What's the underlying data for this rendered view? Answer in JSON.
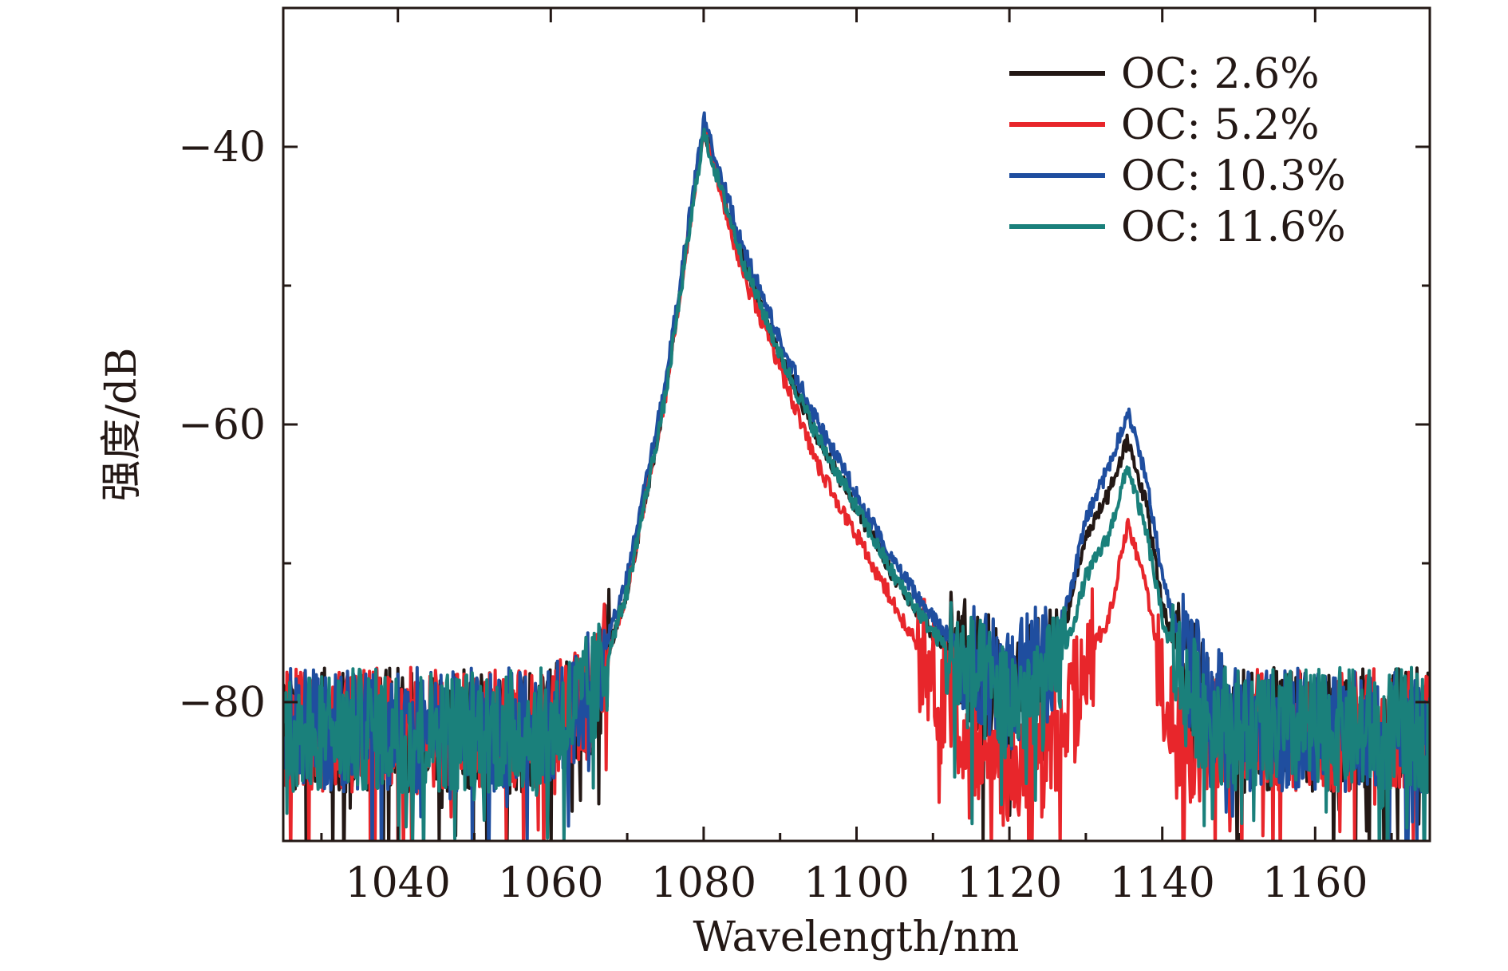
{
  "chart_data": {
    "type": "line",
    "xlabel": "Wavelength/nm",
    "ylabel": "强度/dB",
    "xlim": [
      1025,
      1175
    ],
    "ylim": [
      -90,
      -30
    ],
    "x_ticks": [
      1040,
      1060,
      1080,
      1100,
      1120,
      1140,
      1160
    ],
    "y_ticks": [
      -40,
      -60,
      -80
    ],
    "x_tick_labels": [
      "1040",
      "1060",
      "1080",
      "1100",
      "1120",
      "1140",
      "1160"
    ],
    "y_tick_labels": [
      "−40",
      "−60",
      "−80"
    ],
    "legend_position": "top-right",
    "grid": false,
    "series": [
      {
        "name": "OC: 2.6%",
        "color": "#231815",
        "x": [
          1025,
          1040,
          1060,
          1066,
          1070,
          1075,
          1080,
          1085,
          1090,
          1095,
          1100,
          1105,
          1110,
          1115,
          1120,
          1125,
          1128,
          1130,
          1133,
          1135.5,
          1138,
          1140,
          1143,
          1146,
          1150,
          1160,
          1175
        ],
        "y": [
          -82,
          -82,
          -82,
          -79,
          -72,
          -58,
          -38.5,
          -48,
          -55,
          -61,
          -66,
          -71,
          -75,
          -77.5,
          -79,
          -78,
          -73,
          -68,
          -65,
          -61,
          -66,
          -73,
          -78,
          -80,
          -82,
          -82,
          -82
        ]
      },
      {
        "name": "OC: 5.2%",
        "color": "#e8262b",
        "x": [
          1025,
          1040,
          1060,
          1066,
          1070,
          1075,
          1080,
          1085,
          1090,
          1095,
          1100,
          1105,
          1110,
          1115,
          1120,
          1125,
          1128,
          1130,
          1133,
          1135.5,
          1138,
          1140,
          1143,
          1146,
          1150,
          1160,
          1175
        ],
        "y": [
          -82,
          -82,
          -82,
          -79,
          -72,
          -58,
          -38.5,
          -49,
          -56,
          -63,
          -68,
          -73,
          -78,
          -82,
          -85,
          -84,
          -80,
          -77,
          -74,
          -67,
          -72,
          -78,
          -84,
          -82,
          -82,
          -82,
          -82
        ]
      },
      {
        "name": "OC: 10.3%",
        "color": "#1f4e9f",
        "x": [
          1025,
          1040,
          1060,
          1066,
          1070,
          1075,
          1080,
          1085,
          1090,
          1095,
          1100,
          1105,
          1110,
          1115,
          1120,
          1125,
          1128,
          1130,
          1133,
          1135.5,
          1138,
          1140,
          1143,
          1146,
          1150,
          1160,
          1175
        ],
        "y": [
          -82,
          -82,
          -82,
          -78,
          -71,
          -57,
          -38,
          -47,
          -54,
          -60,
          -65,
          -70,
          -74,
          -77,
          -79,
          -77,
          -72,
          -67,
          -63,
          -59,
          -64,
          -71,
          -77,
          -80,
          -82,
          -82,
          -82
        ]
      },
      {
        "name": "OC: 11.6%",
        "color": "#1a807b",
        "x": [
          1025,
          1040,
          1060,
          1066,
          1070,
          1075,
          1080,
          1085,
          1090,
          1095,
          1100,
          1105,
          1110,
          1115,
          1120,
          1125,
          1128,
          1130,
          1133,
          1135.5,
          1138,
          1140,
          1143,
          1146,
          1150,
          1160,
          1175
        ],
        "y": [
          -82,
          -82,
          -82,
          -79,
          -72,
          -58,
          -39,
          -48,
          -55,
          -61,
          -66,
          -71,
          -75,
          -78,
          -80,
          -79,
          -75,
          -71,
          -68,
          -63,
          -68,
          -74,
          -79,
          -81,
          -82,
          -82,
          -82
        ]
      }
    ]
  }
}
